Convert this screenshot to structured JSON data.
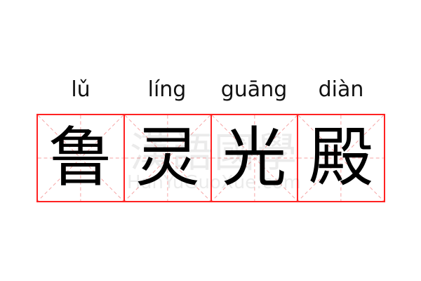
{
  "pinyin": [
    "lǔ",
    "líng",
    "guāng",
    "diàn"
  ],
  "characters": [
    "鲁",
    "灵",
    "光",
    "殿"
  ],
  "watermark": {
    "chinese": "漢語國學",
    "latin": "HanYuGuoXue.com"
  },
  "colors": {
    "grid_border": "#ff2222",
    "guide_lines": "#f5a3a3",
    "text": "#000000"
  }
}
